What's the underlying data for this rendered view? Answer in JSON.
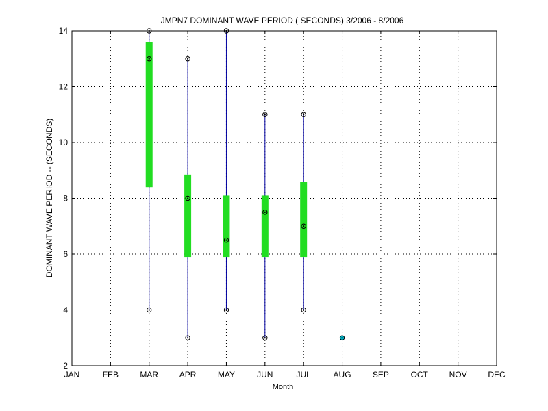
{
  "chart_data": {
    "type": "box",
    "title": "JMPN7  DOMINANT WAVE PERIOD ( SECONDS) 3/2006 - 8/2006",
    "xlabel": "Month",
    "ylabel": "DOMINANT WAVE PERIOD -- (SECONDS)",
    "categories": [
      "JAN",
      "FEB",
      "MAR",
      "APR",
      "MAY",
      "JUN",
      "JUL",
      "AUG",
      "SEP",
      "OCT",
      "NOV",
      "DEC"
    ],
    "y_ticks": [
      "2",
      "4",
      "6",
      "8",
      "10",
      "12",
      "14"
    ],
    "ylim": [
      2,
      14
    ],
    "grid": true,
    "series": [
      {
        "category": "MAR",
        "min": 4,
        "max": 14,
        "q1": 8.4,
        "q3": 13.6,
        "median": 13
      },
      {
        "category": "APR",
        "min": 3,
        "max": 13,
        "q1": 5.9,
        "q3": 8.85,
        "median": 8
      },
      {
        "category": "MAY",
        "min": 4,
        "max": 14,
        "q1": 5.9,
        "q3": 8.1,
        "median": 6.5
      },
      {
        "category": "JUN",
        "min": 3,
        "max": 11,
        "q1": 5.9,
        "q3": 8.1,
        "median": 7.5
      },
      {
        "category": "JUL",
        "min": 4,
        "max": 11,
        "q1": 5.9,
        "q3": 8.6,
        "median": 7
      },
      {
        "category": "AUG",
        "min": 3,
        "max": 3,
        "q1": 3,
        "q3": 3,
        "median": 3
      }
    ],
    "colors": {
      "whisker": "#0000a0",
      "box": "#22dd22",
      "marker": "#000000",
      "single_marker": "#00b4c8",
      "grid": "#000000",
      "axis": "#000000"
    }
  }
}
